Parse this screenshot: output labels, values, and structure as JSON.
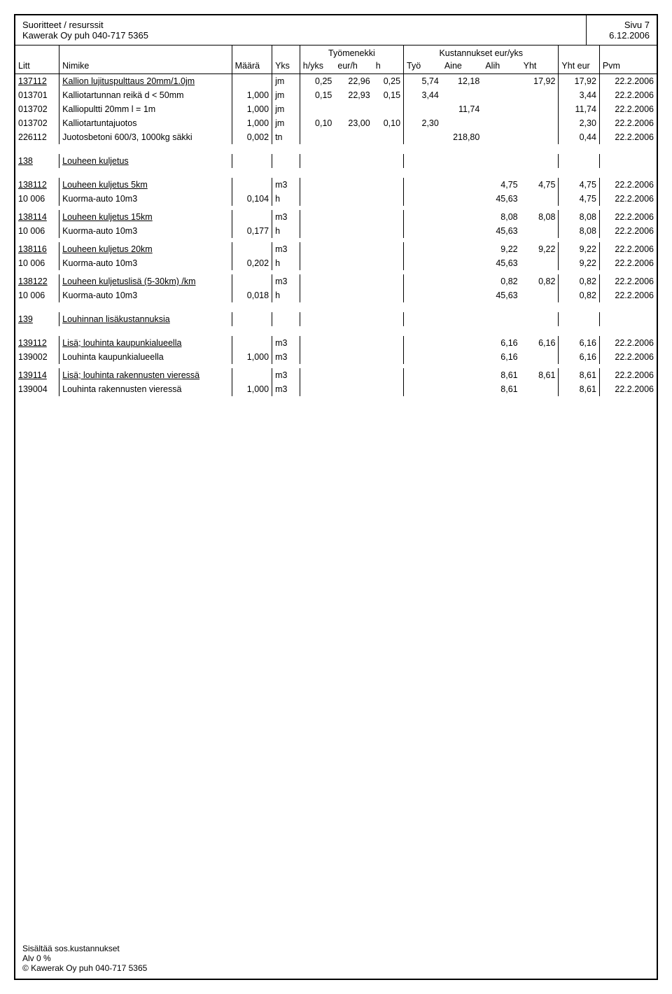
{
  "header": {
    "title1": "Suoritteet / resurssit",
    "title2": "Kawerak Oy puh 040-717 5365",
    "page_label": "Sivu 7",
    "print_date": "6.12.2006"
  },
  "columns": {
    "litt": "Litt",
    "nimike": "Nimike",
    "maara": "Määrä",
    "yks": "Yks",
    "group_tyomenekki": "Työmenekki",
    "hyks": "h/yks",
    "eurh": "eur/h",
    "h": "h",
    "group_kustannukset": "Kustannukset eur/yks",
    "tyo": "Työ",
    "aine": "Aine",
    "alih": "Alih",
    "yht": "Yht",
    "yhteur": "Yht eur",
    "pvm": "Pvm"
  },
  "rows": [
    {
      "type": "main",
      "litt": "137112",
      "name": "Kallion lujituspulttaus 20mm/1.0jm",
      "yks": "jm",
      "hyks": "0,25",
      "eurh": "22,96",
      "h": "0,25",
      "tyo": "5,74",
      "aine": "12,18",
      "yht": "17,92",
      "yhteur": "17,92",
      "pvm": "22.2.2006"
    },
    {
      "type": "sub",
      "litt": "013701",
      "name": "Kalliotartunnan reikä d < 50mm",
      "maara": "1,000",
      "yks": "jm",
      "hyks": "0,15",
      "eurh": "22,93",
      "h": "0,15",
      "tyo": "3,44",
      "yhteur": "3,44",
      "pvm": "22.2.2006"
    },
    {
      "type": "sub",
      "litt": "013702",
      "name": "Kalliopultti 20mm l = 1m",
      "maara": "1,000",
      "yks": "jm",
      "aine": "11,74",
      "yhteur": "11,74",
      "pvm": "22.2.2006"
    },
    {
      "type": "sub",
      "litt": "013702",
      "name": "Kalliotartuntajuotos",
      "maara": "1,000",
      "yks": "jm",
      "hyks": "0,10",
      "eurh": "23,00",
      "h": "0,10",
      "tyo": "2,30",
      "yhteur": "2,30",
      "pvm": "22.2.2006"
    },
    {
      "type": "sub",
      "litt": "226112",
      "name": "Juotosbetoni 600/3, 1000kg säkki",
      "maara": "0,002",
      "yks": "tn",
      "aine": "218,80",
      "yhteur": "0,44",
      "pvm": "22.2.2006"
    },
    {
      "type": "spacer"
    },
    {
      "type": "main",
      "litt": "138",
      "name": "Louheen kuljetus"
    },
    {
      "type": "spacer"
    },
    {
      "type": "main",
      "litt": "138112",
      "name": "Louheen kuljetus 5km",
      "yks": "m3",
      "alih": "4,75",
      "yht": "4,75",
      "yhteur": "4,75",
      "pvm": "22.2.2006"
    },
    {
      "type": "sub",
      "litt": "10 006",
      "name": "Kuorma-auto 10m3",
      "maara": "0,104",
      "yks": "h",
      "alih": "45,63",
      "yhteur": "4,75",
      "pvm": "22.2.2006"
    },
    {
      "type": "small-spacer"
    },
    {
      "type": "main",
      "litt": "138114",
      "name": "Louheen kuljetus 15km",
      "yks": "m3",
      "alih": "8,08",
      "yht": "8,08",
      "yhteur": "8,08",
      "pvm": "22.2.2006"
    },
    {
      "type": "sub",
      "litt": "10 006",
      "name": "Kuorma-auto 10m3",
      "maara": "0,177",
      "yks": "h",
      "alih": "45,63",
      "yhteur": "8,08",
      "pvm": "22.2.2006"
    },
    {
      "type": "small-spacer"
    },
    {
      "type": "main",
      "litt": "138116",
      "name": "Louheen kuljetus 20km",
      "yks": "m3",
      "alih": "9,22",
      "yht": "9,22",
      "yhteur": "9,22",
      "pvm": "22.2.2006"
    },
    {
      "type": "sub",
      "litt": "10 006",
      "name": "Kuorma-auto 10m3",
      "maara": "0,202",
      "yks": "h",
      "alih": "45,63",
      "yhteur": "9,22",
      "pvm": "22.2.2006"
    },
    {
      "type": "small-spacer"
    },
    {
      "type": "main",
      "litt": "138122",
      "name": "Louheen kuljetuslisä (5-30km) /km",
      "yks": "m3",
      "alih": "0,82",
      "yht": "0,82",
      "yhteur": "0,82",
      "pvm": "22.2.2006"
    },
    {
      "type": "sub",
      "litt": "10 006",
      "name": "Kuorma-auto 10m3",
      "maara": "0,018",
      "yks": "h",
      "alih": "45,63",
      "yhteur": "0,82",
      "pvm": "22.2.2006"
    },
    {
      "type": "spacer"
    },
    {
      "type": "main",
      "litt": "139",
      "name": "Louhinnan lisäkustannuksia"
    },
    {
      "type": "spacer"
    },
    {
      "type": "main",
      "litt": "139112",
      "name": "Lisä; louhinta kaupunkialueella",
      "yks": "m3",
      "alih": "6,16",
      "yht": "6,16",
      "yhteur": "6,16",
      "pvm": "22.2.2006"
    },
    {
      "type": "sub",
      "litt": "139002",
      "name": "Louhinta kaupunkialueella",
      "maara": "1,000",
      "yks": "m3",
      "alih": "6,16",
      "yhteur": "6,16",
      "pvm": "22.2.2006"
    },
    {
      "type": "small-spacer"
    },
    {
      "type": "main",
      "litt": "139114",
      "name": "Lisä; louhinta rakennusten vieressä",
      "yks": "m3",
      "alih": "8,61",
      "yht": "8,61",
      "yhteur": "8,61",
      "pvm": "22.2.2006"
    },
    {
      "type": "sub",
      "litt": "139004",
      "name": "Louhinta rakennusten vieressä",
      "maara": "1,000",
      "yks": "m3",
      "alih": "8,61",
      "yhteur": "8,61",
      "pvm": "22.2.2006"
    }
  ],
  "footer": {
    "line1": "Sisältää sos.kustannukset",
    "line2": "Alv 0 %",
    "line3": "©  Kawerak Oy puh 040-717 5365"
  }
}
